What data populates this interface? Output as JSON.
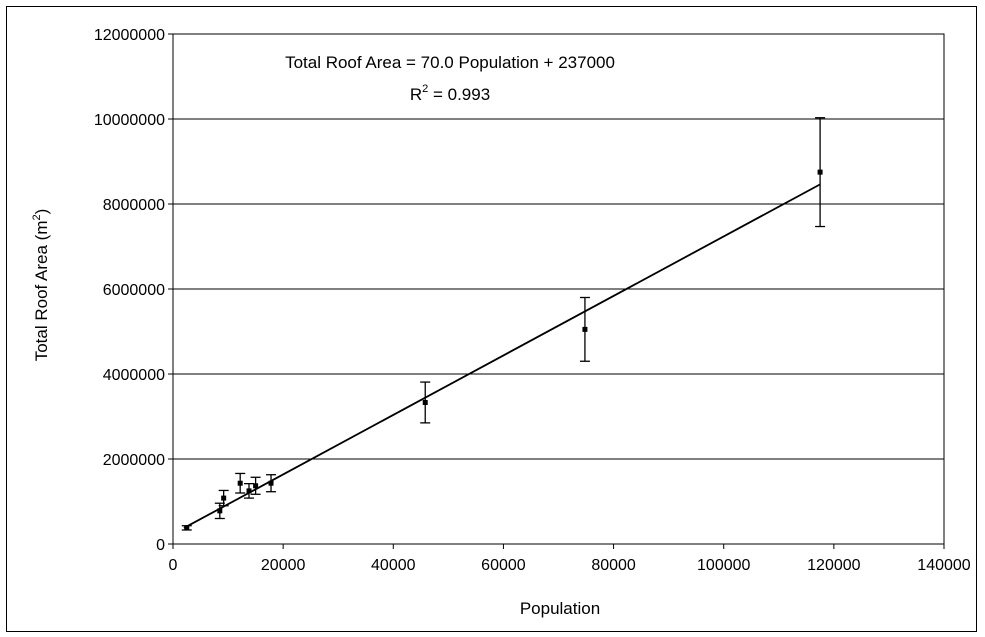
{
  "chart_data": {
    "type": "scatter",
    "xlabel": "Population",
    "ylabel_main": "Total Roof Area (m",
    "ylabel_sup": "2",
    "ylabel_end": ")",
    "xlim": [
      0,
      140000
    ],
    "ylim": [
      0,
      12000000
    ],
    "x_ticks": [
      "0",
      "20000",
      "40000",
      "60000",
      "80000",
      "100000",
      "120000",
      "140000"
    ],
    "y_ticks": [
      "0",
      "2000000",
      "4000000",
      "6000000",
      "8000000",
      "10000000",
      "12000000"
    ],
    "x_tick_values": [
      0,
      20000,
      40000,
      60000,
      80000,
      100000,
      120000,
      140000
    ],
    "y_tick_values": [
      0,
      2000000,
      4000000,
      6000000,
      8000000,
      10000000,
      12000000
    ],
    "grid": "horizontal",
    "annotation_line1": "Total Roof Area = 70.0 Population + 237000",
    "annotation_line2_main": "R",
    "annotation_line2_sup": "2",
    "annotation_line2_end": " = 0.993",
    "points": [
      {
        "x": 2500,
        "y": 380000,
        "err": 50000
      },
      {
        "x": 8500,
        "y": 780000,
        "err": 180000
      },
      {
        "x": 9200,
        "y": 1080000,
        "err": 180000
      },
      {
        "x": 12200,
        "y": 1430000,
        "err": 230000
      },
      {
        "x": 13800,
        "y": 1250000,
        "err": 170000
      },
      {
        "x": 15000,
        "y": 1370000,
        "err": 200000
      },
      {
        "x": 17800,
        "y": 1430000,
        "err": 200000
      },
      {
        "x": 45800,
        "y": 3330000,
        "err": 480000
      },
      {
        "x": 74800,
        "y": 5050000,
        "err": 750000
      },
      {
        "x": 117500,
        "y": 8750000,
        "err": 1280000
      }
    ],
    "trendline": {
      "slope": 70.0,
      "intercept": 237000,
      "x_range": [
        2000,
        117500
      ]
    }
  }
}
